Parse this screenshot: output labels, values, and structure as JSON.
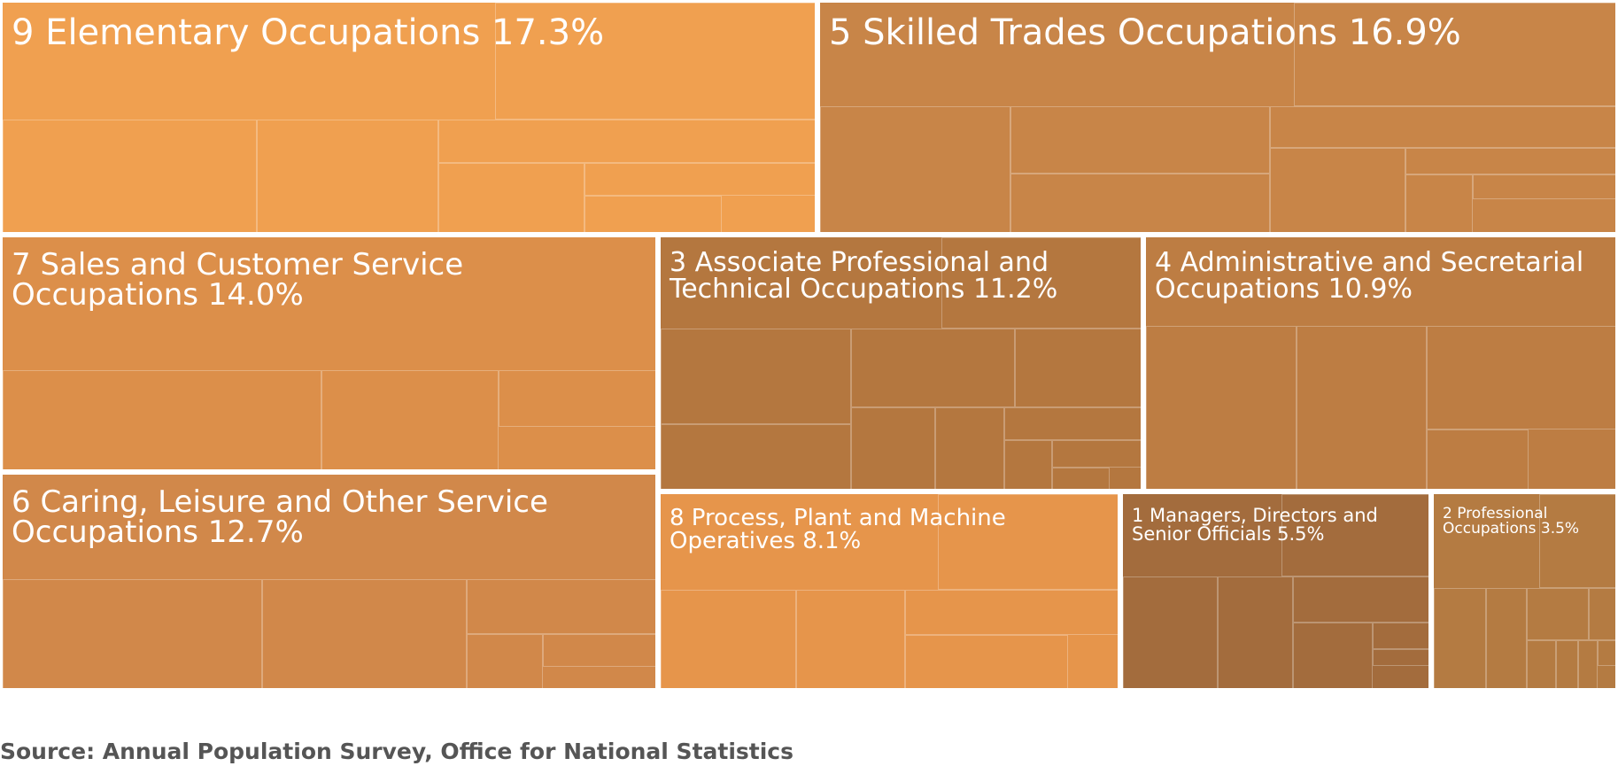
{
  "chart_data": {
    "type": "treemap",
    "categories": [
      "9 Elementary Occupations",
      "5 Skilled Trades Occupations",
      "7 Sales and Customer Service Occupations",
      "6 Caring, Leisure and Other Service Occupations",
      "3 Associate Professional and Technical Occupations",
      "4 Administrative and Secretarial Occupations",
      "8 Process, Plant and Machine Operatives",
      "1 Managers, Directors and Senior Officials",
      "2 Professional Occupations"
    ],
    "values": [
      17.3,
      16.9,
      14.0,
      12.7,
      11.2,
      10.9,
      8.1,
      5.5,
      3.5
    ],
    "labels": [
      "9 Elementary Occupations 17.3%",
      "5 Skilled Trades Occupations 16.9%",
      "7 Sales and Customer Service Occupations 14.0%",
      "6 Caring, Leisure and Other Service Occupations 12.7%",
      "3 Associate Professional and Technical Occupations 11.2%",
      "4 Administrative and Secretarial Occupations 10.9%",
      "8 Process, Plant and Machine Operatives 8.1%",
      "1 Managers, Directors and Senior Officials 5.5%",
      "2 Professional Occupations 3.5%"
    ],
    "colors": [
      "#f0a050",
      "#c88548",
      "#dc8f4a",
      "#d1884a",
      "#b4773f",
      "#bd7d43",
      "#e6954b",
      "#a36c3d",
      "#b47b42"
    ]
  },
  "source": "Source: Annual Population Survey, Office for National Statistics"
}
